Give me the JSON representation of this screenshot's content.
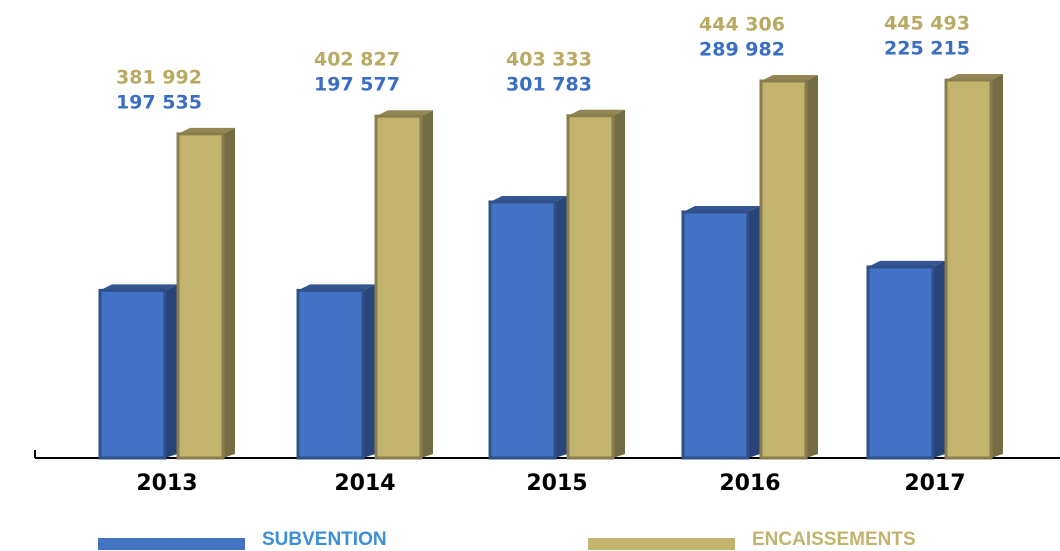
{
  "chart_data": {
    "type": "bar",
    "categories": [
      "2013",
      "2014",
      "2015",
      "2016",
      "2017"
    ],
    "series": [
      {
        "name": "SUBVENTION",
        "color": "#4472c4",
        "values": [
          197535,
          197577,
          301783,
          289982,
          225215
        ],
        "value_labels": [
          "197 535",
          "197 577",
          "301 783",
          "289 982",
          "225 215"
        ]
      },
      {
        "name": "ENCAISSEMENTS",
        "color": "#c2b46e",
        "values": [
          381992,
          402827,
          403333,
          444306,
          445493
        ],
        "value_labels": [
          "381 992",
          "402 827",
          "403 333",
          "444 306",
          "445 493"
        ]
      }
    ]
  }
}
